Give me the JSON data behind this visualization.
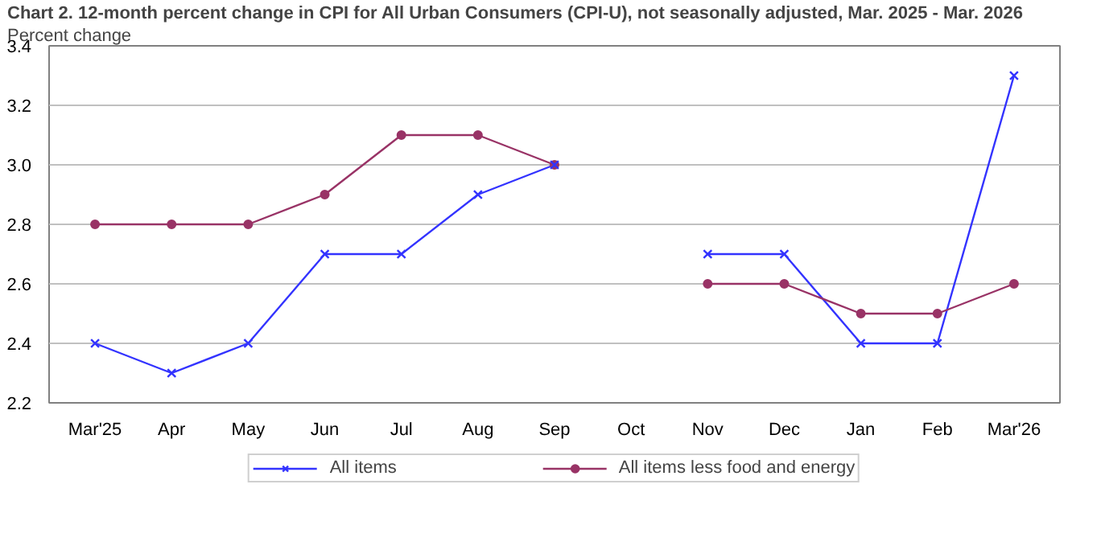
{
  "chart_data": {
    "type": "line",
    "title": "Chart 2. 12-month percent change in CPI for All Urban Consumers (CPI-U), not seasonally adjusted, Mar. 2025 - Mar. 2026",
    "ylabel": "Percent change",
    "categories": [
      "Mar'25",
      "Apr",
      "May",
      "Jun",
      "Jul",
      "Aug",
      "Sep",
      "Oct",
      "Nov",
      "Dec",
      "Jan",
      "Feb",
      "Mar'26"
    ],
    "series": [
      {
        "name": "All items",
        "color": "#3333ff",
        "marker": "cross",
        "values": [
          2.4,
          2.3,
          2.4,
          2.7,
          2.7,
          2.9,
          3.0,
          null,
          2.7,
          2.7,
          2.4,
          2.4,
          3.3
        ]
      },
      {
        "name": "All items less food and energy",
        "color": "#993366",
        "marker": "circle",
        "values": [
          2.8,
          2.8,
          2.8,
          2.9,
          3.1,
          3.1,
          3.0,
          null,
          2.6,
          2.6,
          2.5,
          2.5,
          2.6
        ]
      }
    ],
    "ylim": [
      2.2,
      3.4
    ],
    "yticks": [
      2.2,
      2.4,
      2.6,
      2.8,
      {
        "value": 3,
        "label": "3.0"
      },
      3.2,
      3.4
    ],
    "grid": "y",
    "legend": "bottom"
  }
}
